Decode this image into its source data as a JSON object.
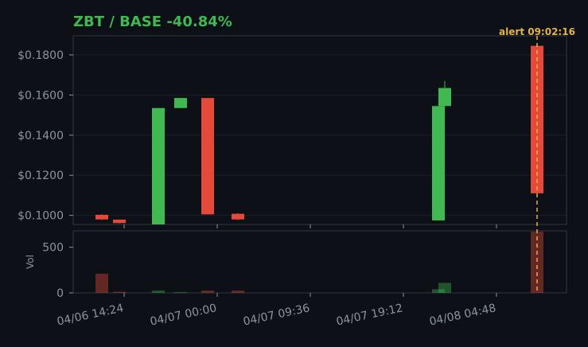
{
  "title": "ZBT / BASE  -40.84%",
  "colors": {
    "background": "#0d1117",
    "panel_border": "#30363d",
    "grid": "#1b2129",
    "tick_text": "#8b949e",
    "title": "#3fb950",
    "up": "#3fb950",
    "down": "#e5493a",
    "alert": "#e3b341"
  },
  "chart_data": {
    "type": "candlestick",
    "price_axis": {
      "ylim": [
        0.0955,
        0.1895
      ],
      "ticks": [
        0.18,
        0.16,
        0.14,
        0.12,
        0.1
      ],
      "tick_labels": [
        "$0.1800",
        "$0.1600",
        "$0.1400",
        "$0.1200",
        "$0.1000"
      ],
      "grid": true
    },
    "volume_axis": {
      "label": "Vol",
      "ylim": [
        0,
        680
      ],
      "ticks": [
        0,
        500
      ],
      "tick_labels": [
        "0",
        "500"
      ]
    },
    "time_axis": {
      "tick_labels": [
        "04/06 14:24",
        "04/07 00:00",
        "04/07 09:36",
        "04/07 19:12",
        "04/08 04:48"
      ]
    },
    "candles": [
      {
        "index": 0,
        "open": 0.1003,
        "high": 0.1006,
        "low": 0.0977,
        "close": 0.098,
        "volume": 210
      },
      {
        "index": 1,
        "open": 0.0979,
        "high": 0.098,
        "low": 0.096,
        "close": 0.0962,
        "volume": 12
      },
      {
        "index": 2,
        "open": 0.0955,
        "high": 0.1535,
        "low": 0.0955,
        "close": 0.1535,
        "volume": 25
      },
      {
        "index": 3,
        "open": 0.1535,
        "high": 0.1585,
        "low": 0.1535,
        "close": 0.1585,
        "volume": 8
      },
      {
        "index": 4,
        "open": 0.1585,
        "high": 0.1585,
        "low": 0.1005,
        "close": 0.1005,
        "volume": 25
      },
      {
        "index": 5,
        "open": 0.1008,
        "high": 0.1012,
        "low": 0.0977,
        "close": 0.098,
        "volume": 25
      },
      {
        "index": 6,
        "open": 0.0975,
        "high": 0.1545,
        "low": 0.0975,
        "close": 0.1545,
        "volume": 40
      },
      {
        "index": 7,
        "open": 0.1545,
        "high": 0.167,
        "low": 0.1545,
        "close": 0.1635,
        "volume": 110
      },
      {
        "index": 8,
        "open": 0.1845,
        "high": 0.1845,
        "low": 0.111,
        "close": 0.111,
        "volume": 670
      }
    ],
    "alert": {
      "label": "alert 09:02:16",
      "candle_index": 8
    }
  }
}
